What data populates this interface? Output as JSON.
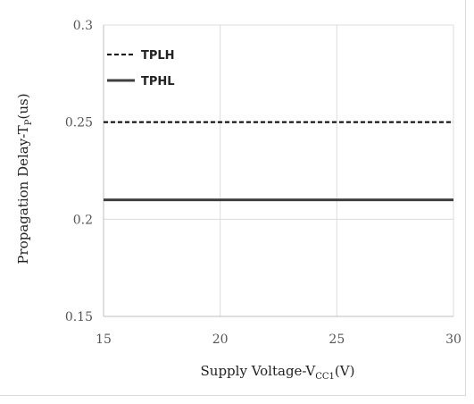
{
  "chart_data": {
    "type": "line",
    "title": "",
    "xlabel": {
      "main": "Supply Voltage-V",
      "sub": "CC1",
      "suffix": "(V)"
    },
    "ylabel": {
      "main": "Propagation Delay-T",
      "sub": "P",
      "suffix": "(us)"
    },
    "xlim": [
      15,
      30
    ],
    "ylim": [
      0.15,
      0.3
    ],
    "x_ticks": [
      15,
      20,
      25,
      30
    ],
    "y_ticks": [
      0.15,
      0.2,
      0.25,
      0.3
    ],
    "x_tick_labels": [
      "15",
      "20",
      "25",
      "30"
    ],
    "y_tick_labels": [
      "0.15",
      "0.2",
      "0.25",
      "0.3"
    ],
    "grid": true,
    "legend_position": "top-left",
    "series": [
      {
        "name": "TPLH",
        "style": "dashed",
        "color": "#000000",
        "x": [
          15,
          30
        ],
        "y": [
          0.25,
          0.25
        ]
      },
      {
        "name": "TPHL",
        "style": "solid",
        "color": "#404040",
        "x": [
          15,
          30
        ],
        "y": [
          0.21,
          0.21
        ]
      }
    ]
  }
}
